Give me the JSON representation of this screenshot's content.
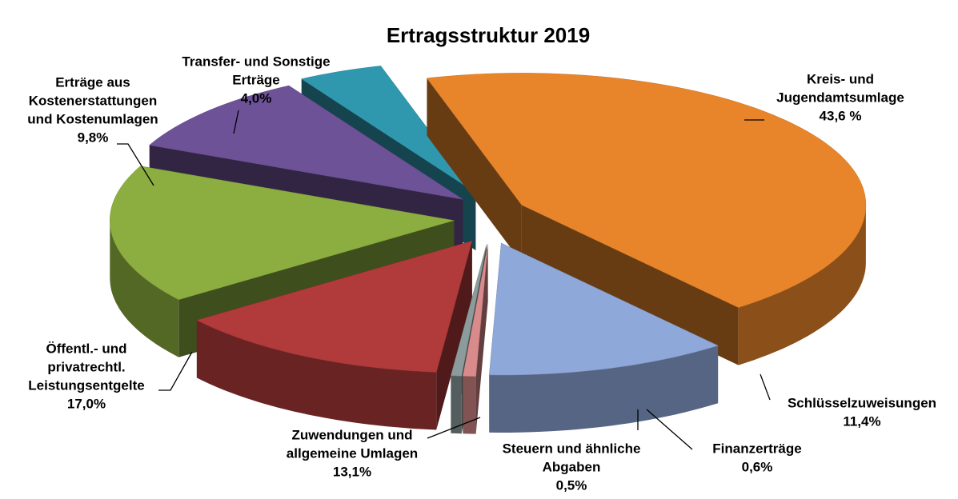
{
  "chart_data": {
    "type": "pie3d",
    "title": "Ertragsstruktur 2019",
    "categories": [
      [
        "Kreis- und",
        "Jugendamtsumlage"
      ],
      [
        "Schlüsselzuweisungen"
      ],
      [
        "Finanzerträge"
      ],
      [
        "Steuern und ähnliche",
        "Abgaben"
      ],
      [
        "Zuwendungen und",
        "allgemeine  Umlagen"
      ],
      [
        "Öffentl.- und",
        "privatrechtl.",
        "Leistungsentgelte"
      ],
      [
        "Erträge aus",
        "Kostenerstattungen",
        "und Kostenumlagen"
      ],
      [
        "Transfer- und Sonstige",
        "Erträge"
      ]
    ],
    "values": [
      43.6,
      11.4,
      0.6,
      0.5,
      13.1,
      17.0,
      9.8,
      4.0
    ],
    "value_labels": [
      "43,6 %",
      "11,4%",
      "0,6%",
      "0,5%",
      "13,1%",
      "17,0%",
      "9,8%",
      "4,0%"
    ],
    "colors": [
      "#e8852a",
      "#8fa8da",
      "#d98a8a",
      "#8c9c9c",
      "#b13a3a",
      "#8cae40",
      "#6e5298",
      "#2f98ae"
    ]
  }
}
